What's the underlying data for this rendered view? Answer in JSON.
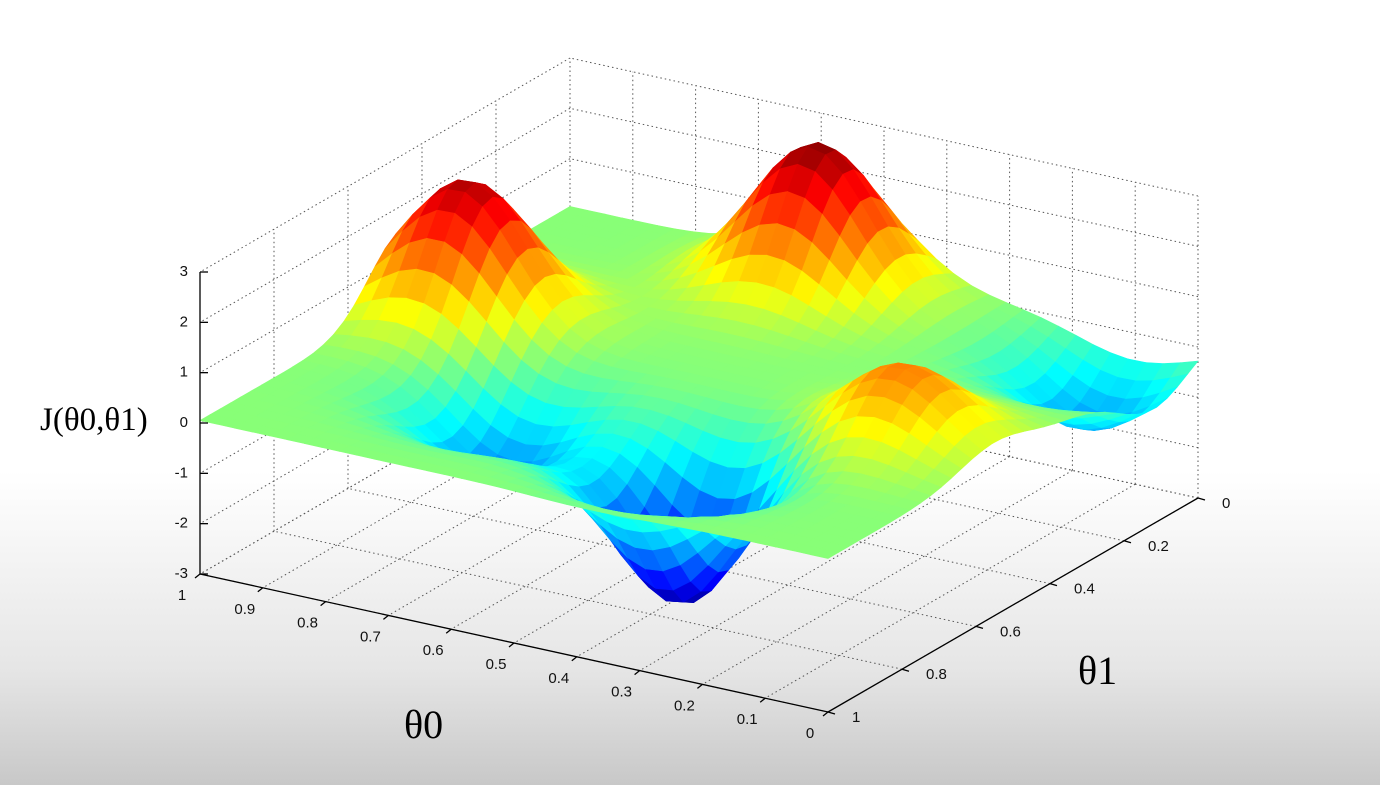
{
  "chart_data": {
    "type": "surface",
    "title": "",
    "zlabel": "J(θ0,θ1)",
    "xlabel": "θ0",
    "ylabel": "θ1",
    "xlim": [
      0,
      1
    ],
    "ylim": [
      0,
      1
    ],
    "zlim": [
      -3,
      3
    ],
    "x_ticks": [
      "0",
      "0.1",
      "0.2",
      "0.3",
      "0.4",
      "0.5",
      "0.6",
      "0.7",
      "0.8",
      "0.9",
      "1"
    ],
    "y_ticks": [
      "0",
      "0.2",
      "0.4",
      "0.6",
      "0.8",
      "1"
    ],
    "z_ticks": [
      "-3",
      "-2",
      "-1",
      "0",
      "1",
      "2",
      "3"
    ],
    "grid": true,
    "colormap": "jet",
    "surface_features": [
      {
        "kind": "peak",
        "theta0": 0.9,
        "theta1": 0.45,
        "J": 2.7
      },
      {
        "kind": "peak",
        "theta0": 0.55,
        "theta1": 0.1,
        "J": 2.9
      },
      {
        "kind": "peak",
        "theta0": 0.15,
        "theta1": 0.55,
        "J": 1.5
      },
      {
        "kind": "trough",
        "theta0": 0.38,
        "theta1": 0.75,
        "J": -3.0
      },
      {
        "kind": "trough",
        "theta0": 0.7,
        "theta1": 0.7,
        "J": -1.5
      },
      {
        "kind": "trough",
        "theta0": 0.1,
        "theta1": 0.12,
        "J": -1.4
      }
    ]
  }
}
